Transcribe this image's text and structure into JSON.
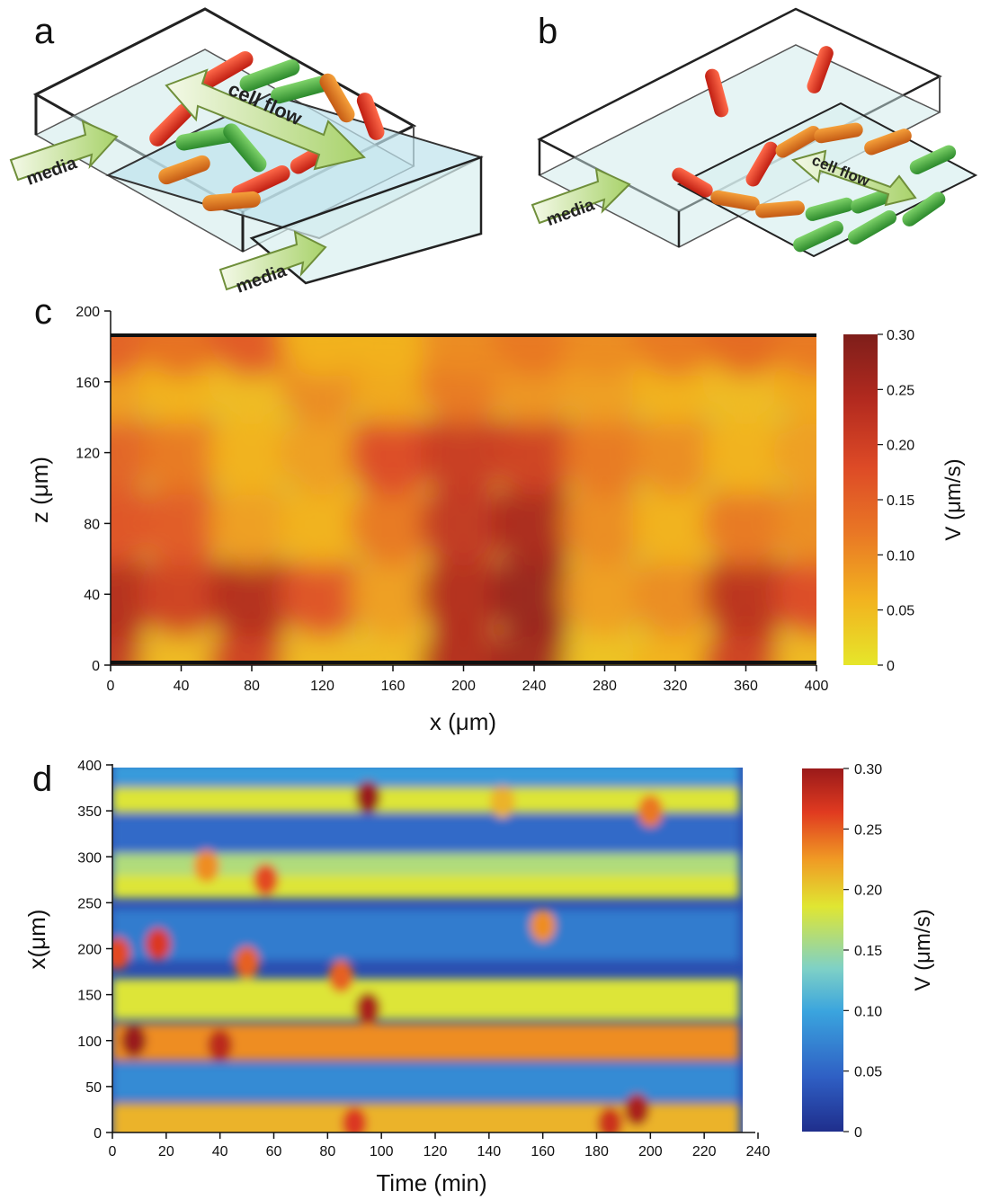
{
  "panels": {
    "a": {
      "letter": "a",
      "media_label_1": "media",
      "media_label_2": "media",
      "arrow_label": "cell flow"
    },
    "b": {
      "letter": "b",
      "media_label": "media",
      "arrow_label": "cell flow"
    }
  },
  "chart_data": [
    {
      "panel": "c",
      "type": "heatmap",
      "title": "",
      "xlabel": "x (μm)",
      "ylabel": "z (μm)",
      "xlim": [
        0,
        400
      ],
      "ylim": [
        0,
        200
      ],
      "x_ticks": [
        0,
        40,
        80,
        120,
        160,
        200,
        240,
        280,
        320,
        360,
        400
      ],
      "y_ticks": [
        0,
        40,
        80,
        120,
        160,
        200
      ],
      "x_tick_labels": [
        "0",
        "40",
        "80",
        "120",
        "160",
        "200",
        "240",
        "280",
        "320",
        "360",
        "400"
      ],
      "y_tick_labels": [
        "0",
        "40",
        "80",
        "120",
        "160",
        "200"
      ],
      "colorbar": {
        "label": "V (μm/s)",
        "range": [
          0,
          0.3
        ],
        "ticks": [
          0,
          0.05,
          0.1,
          0.15,
          0.2,
          0.25,
          0.3
        ],
        "tick_labels": [
          "0",
          "0.05",
          "0.10",
          "0.15",
          "0.20",
          "0.25",
          "0.30"
        ],
        "colormap": [
          "#e6e62a",
          "#f2b21f",
          "#e97725",
          "#dd4a26",
          "#b32a1f",
          "#7e1e1a"
        ]
      },
      "sample_grid": {
        "x": [
          0,
          40,
          80,
          120,
          160,
          200,
          240,
          280,
          320,
          360,
          400
        ],
        "z": [
          0,
          40,
          80,
          120,
          160,
          187
        ],
        "v": [
          [
            0.22,
            0.05,
            0.2,
            0.05,
            0.05,
            0.24,
            0.26,
            0.04,
            0.06,
            0.2,
            0.05
          ],
          [
            0.24,
            0.2,
            0.24,
            0.17,
            0.08,
            0.24,
            0.27,
            0.08,
            0.1,
            0.23,
            0.18
          ],
          [
            0.17,
            0.16,
            0.08,
            0.06,
            0.12,
            0.22,
            0.25,
            0.1,
            0.06,
            0.12,
            0.1
          ],
          [
            0.15,
            0.12,
            0.06,
            0.08,
            0.18,
            0.21,
            0.2,
            0.12,
            0.1,
            0.06,
            0.08
          ],
          [
            0.08,
            0.06,
            0.05,
            0.1,
            0.07,
            0.12,
            0.09,
            0.08,
            0.06,
            0.05,
            0.07
          ],
          [
            0.15,
            0.13,
            0.16,
            0.06,
            0.06,
            0.1,
            0.12,
            0.1,
            0.12,
            0.14,
            0.12
          ]
        ]
      }
    },
    {
      "panel": "d",
      "type": "heatmap",
      "title": "",
      "xlabel": "Time (min)",
      "ylabel": "x(μm)",
      "xlim": [
        0,
        240
      ],
      "ylim": [
        0,
        400
      ],
      "x_ticks": [
        0,
        20,
        40,
        60,
        80,
        100,
        120,
        140,
        160,
        180,
        200,
        220,
        240
      ],
      "y_ticks": [
        0,
        50,
        100,
        150,
        200,
        250,
        300,
        350,
        400
      ],
      "x_tick_labels": [
        "0",
        "20",
        "40",
        "60",
        "80",
        "100",
        "120",
        "140",
        "160",
        "180",
        "200",
        "220",
        "240"
      ],
      "y_tick_labels": [
        "0",
        "50",
        "100",
        "150",
        "200",
        "250",
        "300",
        "350",
        "400"
      ],
      "data_extent_time": [
        0,
        233
      ],
      "colorbar": {
        "label": "V (μm/s)",
        "range": [
          0,
          0.3
        ],
        "ticks": [
          0,
          0.05,
          0.1,
          0.15,
          0.2,
          0.25,
          0.3
        ],
        "tick_labels": [
          "0",
          "0.05",
          "0.10",
          "0.15",
          "0.20",
          "0.25",
          "0.30"
        ],
        "colormap": [
          "#1f2e8c",
          "#2f5fc4",
          "#3aa4de",
          "#7fd1c6",
          "#e0e632",
          "#f09a24",
          "#e03a20",
          "#9a1a1a"
        ]
      },
      "bands": [
        {
          "x_center": 10,
          "x_halfwidth": 22,
          "v": 0.2
        },
        {
          "x_center": 55,
          "x_halfwidth": 20,
          "v": 0.07
        },
        {
          "x_center": 98,
          "x_halfwidth": 20,
          "v": 0.22
        },
        {
          "x_center": 145,
          "x_halfwidth": 22,
          "v": 0.17
        },
        {
          "x_center": 215,
          "x_halfwidth": 28,
          "v": 0.06
        },
        {
          "x_center": 270,
          "x_halfwidth": 15,
          "v": 0.17
        },
        {
          "x_center": 292,
          "x_halfwidth": 12,
          "v": 0.15
        },
        {
          "x_center": 325,
          "x_halfwidth": 20,
          "v": 0.05
        },
        {
          "x_center": 362,
          "x_halfwidth": 14,
          "v": 0.17
        },
        {
          "x_center": 390,
          "x_halfwidth": 12,
          "v": 0.08
        }
      ],
      "hotspots": [
        {
          "t": 8,
          "x": 100,
          "v": 0.3
        },
        {
          "t": 40,
          "x": 95,
          "v": 0.28
        },
        {
          "t": 17,
          "x": 205,
          "v": 0.26
        },
        {
          "t": 2,
          "x": 195,
          "v": 0.25
        },
        {
          "t": 95,
          "x": 365,
          "v": 0.3
        },
        {
          "t": 95,
          "x": 135,
          "v": 0.29
        },
        {
          "t": 85,
          "x": 170,
          "v": 0.24
        },
        {
          "t": 57,
          "x": 275,
          "v": 0.25
        },
        {
          "t": 195,
          "x": 25,
          "v": 0.29
        },
        {
          "t": 185,
          "x": 10,
          "v": 0.27
        },
        {
          "t": 160,
          "x": 225,
          "v": 0.22
        },
        {
          "t": 200,
          "x": 350,
          "v": 0.23
        },
        {
          "t": 145,
          "x": 360,
          "v": 0.2
        },
        {
          "t": 90,
          "x": 10,
          "v": 0.26
        },
        {
          "t": 35,
          "x": 290,
          "v": 0.22
        },
        {
          "t": 50,
          "x": 185,
          "v": 0.24
        }
      ]
    }
  ]
}
